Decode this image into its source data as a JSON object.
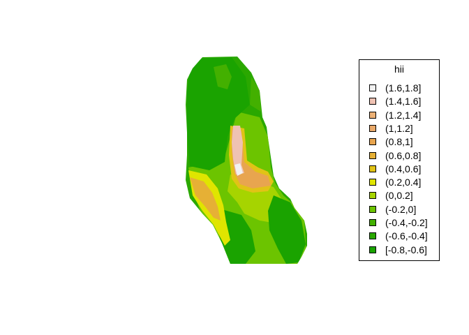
{
  "legend": {
    "title": "hii",
    "items": [
      {
        "label": "(1.6,1.8]",
        "color": "#f2f2f2"
      },
      {
        "label": "(1.4,1.6]",
        "color": "#efc2b3"
      },
      {
        "label": "(1.2,1.4]",
        "color": "#ecb176"
      },
      {
        "label": "(1,1.2]",
        "color": "#e9a96a"
      },
      {
        "label": "(0.8,1]",
        "color": "#e8a54f"
      },
      {
        "label": "(0.6,0.8]",
        "color": "#e6b035"
      },
      {
        "label": "(0.4,0.6]",
        "color": "#e1c316"
      },
      {
        "label": "(0.2,0.4]",
        "color": "#e0e500"
      },
      {
        "label": "(0,0.2]",
        "color": "#a6d400"
      },
      {
        "label": "(-0.2,0]",
        "color": "#6cc400"
      },
      {
        "label": "(-0.4,-0.2]",
        "color": "#43b000"
      },
      {
        "label": "(-0.6,-0.4]",
        "color": "#2aa800"
      },
      {
        "label": "[-0.8,-0.6]",
        "color": "#1aa300"
      }
    ]
  },
  "colors": {
    "darkgreen": "#1aa300",
    "midgreen": "#2aa800",
    "green": "#43b000",
    "lightgreen": "#6cc400",
    "yellowgreen": "#a6d400",
    "yellow": "#e0e500",
    "gold": "#e1c316",
    "orange": "#e6b035",
    "tan": "#e9a96a",
    "pink": "#efc2b3",
    "white": "#f2f2f2"
  }
}
